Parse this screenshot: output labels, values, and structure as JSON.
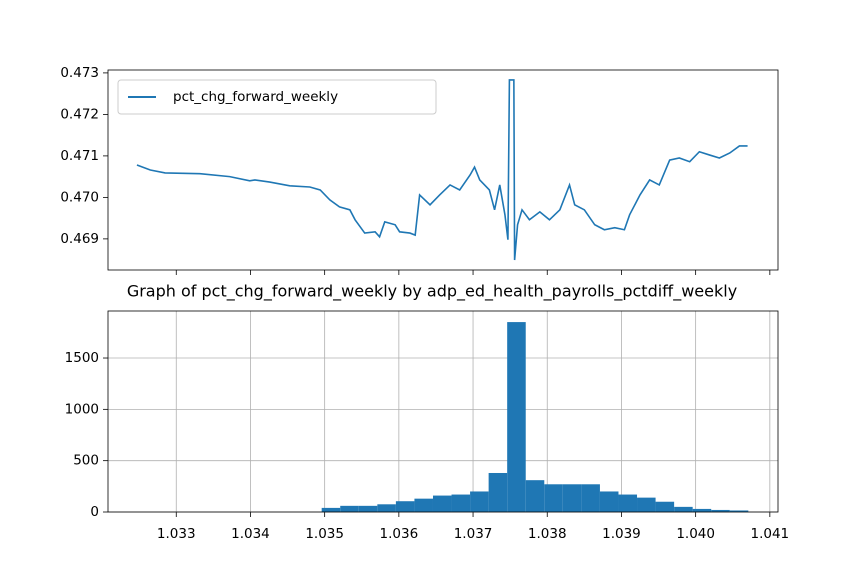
{
  "chart_data": [
    {
      "type": "line",
      "legend": "upper left",
      "grid": false,
      "x": [
        1.03247,
        1.03265,
        1.03285,
        1.03332,
        1.03372,
        1.03399,
        1.03406,
        1.03426,
        1.03453,
        1.0348,
        1.03494,
        1.03507,
        1.0352,
        1.03534,
        1.03541,
        1.03554,
        1.03568,
        1.03574,
        1.03581,
        1.03595,
        1.03601,
        1.03615,
        1.03622,
        1.03628,
        1.03642,
        1.03655,
        1.03669,
        1.03682,
        1.03696,
        1.03702,
        1.03709,
        1.03722,
        1.03729,
        1.03736,
        1.03743,
        1.03747,
        1.03749,
        1.03755,
        1.03756,
        1.0376,
        1.03766,
        1.03776,
        1.0379,
        1.03803,
        1.03817,
        1.0383,
        1.03837,
        1.0385,
        1.03864,
        1.03877,
        1.03891,
        1.03904,
        1.03911,
        1.03925,
        1.03938,
        1.03951,
        1.03965,
        1.03978,
        1.03992,
        1.04005,
        1.04019,
        1.04032,
        1.04046,
        1.04059,
        1.0407
      ],
      "series": [
        {
          "name": "pct_chg_forward_weekly",
          "color": "#1f77b4",
          "values": [
            0.47078,
            0.47066,
            0.47059,
            0.47057,
            0.4705,
            0.4704,
            0.47042,
            0.47037,
            0.47028,
            0.47025,
            0.47018,
            0.46994,
            0.46977,
            0.4697,
            0.46946,
            0.46914,
            0.46917,
            0.46905,
            0.46941,
            0.46934,
            0.46917,
            0.46914,
            0.46909,
            0.47006,
            0.46982,
            0.47006,
            0.4703,
            0.47018,
            0.47054,
            0.47073,
            0.47042,
            0.47018,
            0.4697,
            0.4703,
            0.46958,
            0.46898,
            0.47283,
            0.47283,
            0.46849,
            0.46934,
            0.4697,
            0.46946,
            0.46965,
            0.46946,
            0.4697,
            0.4703,
            0.46982,
            0.4697,
            0.46934,
            0.46922,
            0.46927,
            0.46922,
            0.46958,
            0.47006,
            0.47042,
            0.4703,
            0.4709,
            0.47095,
            0.47086,
            0.4711,
            0.47102,
            0.47095,
            0.47107,
            0.47124,
            0.47124
          ]
        }
      ],
      "xlim": [
        1.03208,
        1.04111
      ],
      "xticks": [
        1.033,
        1.034,
        1.035,
        1.036,
        1.037,
        1.038,
        1.039,
        {
          "value": 1.04,
          "label": "1.040"
        },
        1.041
      ],
      "ylim": [
        0.46825,
        0.47307
      ],
      "yticks": [
        0.469,
        {
          "value": 0.47,
          "label": "0.470"
        },
        0.471,
        0.472,
        0.473
      ]
    },
    {
      "type": "histogram",
      "grid": true,
      "color": "#1f77b4",
      "title": "Graph of pct_chg_forward_weekly by adp_ed_health_payrolls_pctdiff_weekly",
      "bins": [
        1.03496,
        1.03521,
        1.03546,
        1.03571,
        1.03596,
        1.03621,
        1.03646,
        1.03671,
        1.03696,
        1.03721,
        1.03746,
        1.03771,
        1.03796,
        1.03821,
        1.03846,
        1.03871,
        1.03896,
        1.03921,
        1.03946,
        1.03971,
        1.03996,
        1.04021,
        1.04046,
        1.04071
      ],
      "values": [
        40,
        60,
        60,
        75,
        105,
        130,
        160,
        170,
        200,
        380,
        1850,
        310,
        270,
        270,
        270,
        200,
        170,
        140,
        100,
        50,
        30,
        20,
        15
      ],
      "xlim": [
        1.03208,
        1.04111
      ],
      "xticks": [
        1.033,
        1.034,
        1.035,
        1.036,
        1.037,
        1.038,
        1.039,
        {
          "value": 1.04,
          "label": "1.040"
        },
        1.041
      ],
      "ylim": [
        0,
        1958
      ],
      "yticks": [
        0,
        500,
        1000,
        1500
      ]
    }
  ]
}
